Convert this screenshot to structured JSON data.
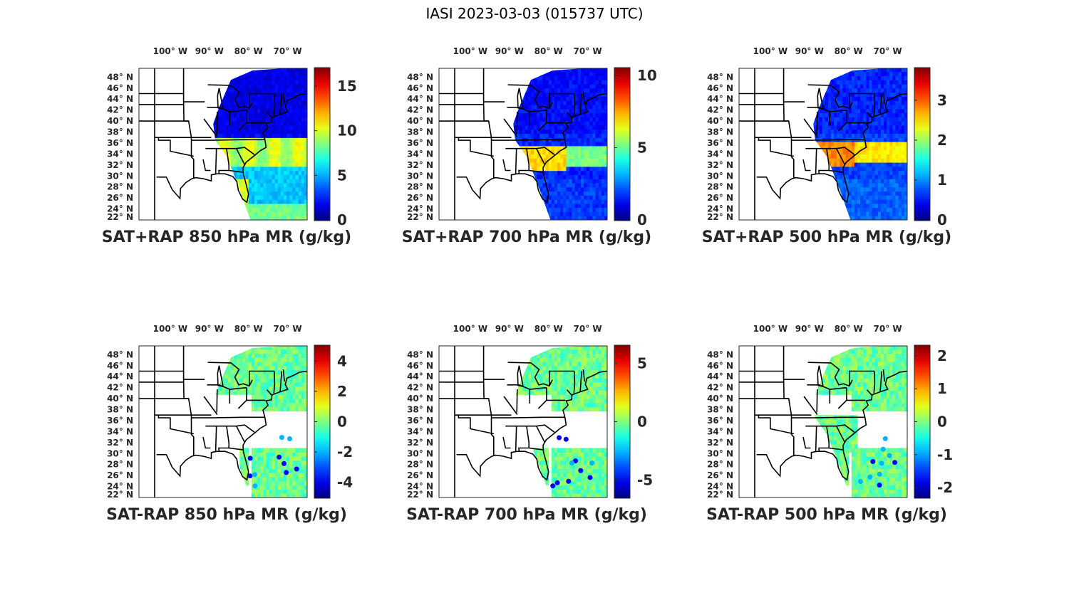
{
  "figure": {
    "title": "IASI 2023-03-03 (015737 UTC)"
  },
  "axis_labels": {
    "lon_ticks": [
      "100° W",
      "90° W",
      "80° W",
      "70° W"
    ],
    "lat_ticks": [
      "48° N",
      "46° N",
      "44° N",
      "42° N",
      "40° N",
      "38° N",
      "36° N",
      "34° N",
      "32° N",
      "30° N",
      "28° N",
      "26° N",
      "24° N",
      "22° N"
    ]
  },
  "chart_data": [
    {
      "type": "heatmap",
      "title": "SAT+RAP 850 hPa MR (g/kg)",
      "colormap": "jet",
      "clim": [
        0,
        17
      ],
      "colorbar_ticks": [
        "0",
        "5",
        "10",
        "15"
      ],
      "field": "total",
      "level_hPa": 850
    },
    {
      "type": "heatmap",
      "title": "SAT+RAP 700 hPa MR (g/kg)",
      "colormap": "jet",
      "clim": [
        0,
        10.5
      ],
      "colorbar_ticks": [
        "0",
        "5",
        "10"
      ],
      "field": "total",
      "level_hPa": 700
    },
    {
      "type": "heatmap",
      "title": "SAT+RAP 500 hPa MR (g/kg)",
      "colormap": "jet",
      "clim": [
        0,
        3.8
      ],
      "colorbar_ticks": [
        "0",
        "1",
        "2",
        "3"
      ],
      "field": "total",
      "level_hPa": 500
    },
    {
      "type": "heatmap",
      "title": "SAT-RAP 850 hPa MR (g/kg)",
      "colormap": "jet",
      "clim": [
        -5,
        5
      ],
      "colorbar_ticks": [
        "-4",
        "-2",
        "0",
        "2",
        "4"
      ],
      "field": "difference",
      "level_hPa": 850
    },
    {
      "type": "heatmap",
      "title": "SAT-RAP 700 hPa MR (g/kg)",
      "colormap": "jet",
      "clim": [
        -6.5,
        6.5
      ],
      "colorbar_ticks": [
        "-5",
        "0",
        "5"
      ],
      "field": "difference",
      "level_hPa": 700
    },
    {
      "type": "heatmap",
      "title": "SAT-RAP 500 hPa MR (g/kg)",
      "colormap": "jet",
      "clim": [
        -2.3,
        2.3
      ],
      "colorbar_ticks": [
        "-2",
        "-1",
        "0",
        "1",
        "2"
      ],
      "field": "difference",
      "level_hPa": 500
    }
  ]
}
